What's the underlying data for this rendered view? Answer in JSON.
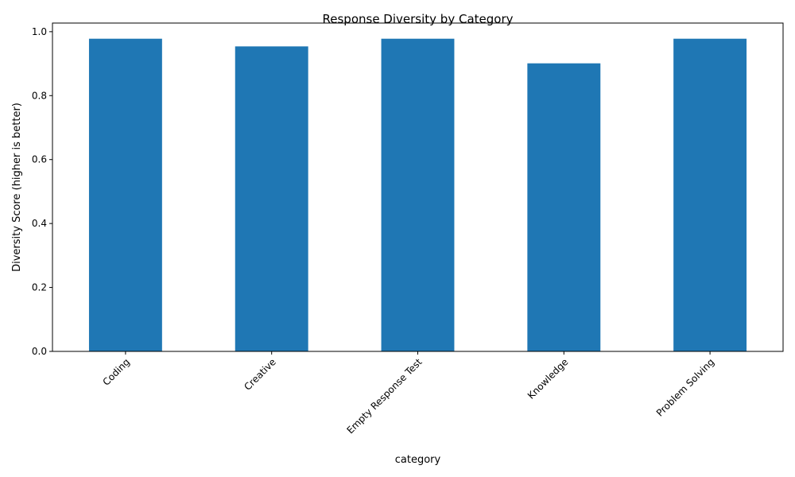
{
  "chart_data": {
    "type": "bar",
    "title": "Response Diversity by Category",
    "xlabel": "category",
    "ylabel": "Diversity Score (higher is better)",
    "categories": [
      "Coding",
      "Creative",
      "Empty Response Test",
      "Knowledge",
      "Problem Solving"
    ],
    "values": [
      0.978,
      0.954,
      0.978,
      0.901,
      0.978
    ],
    "ylim": [
      0,
      1.027
    ],
    "yticks": [
      "0.0",
      "0.2",
      "0.4",
      "0.6",
      "0.8",
      "1.0"
    ],
    "bar_color": "#1f77b4",
    "grid": false,
    "legend": "none"
  }
}
